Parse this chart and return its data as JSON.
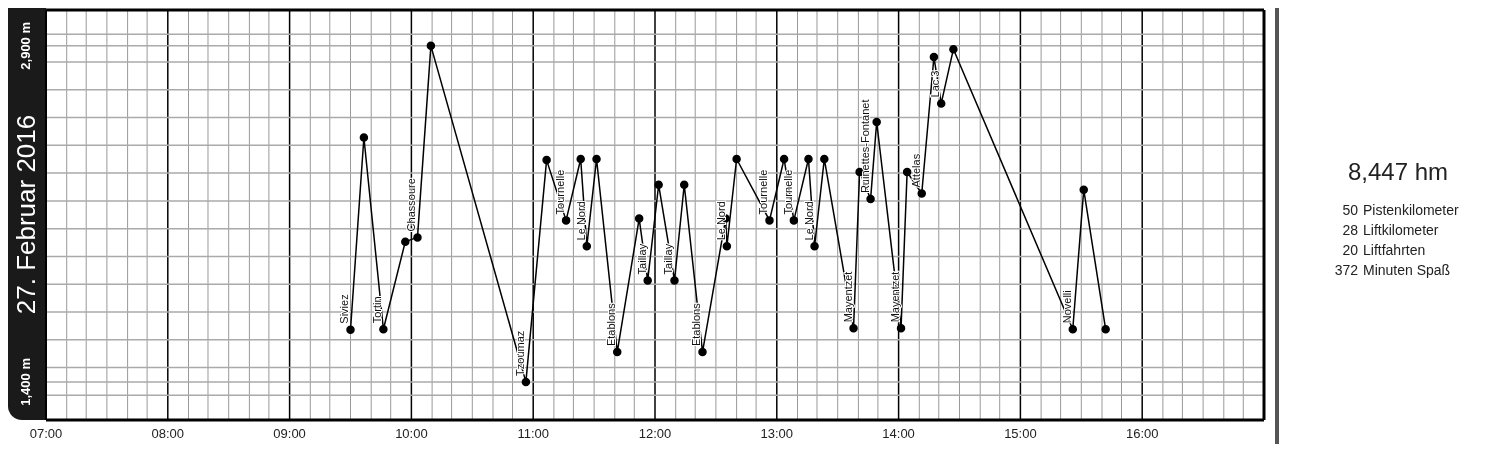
{
  "chart_data": {
    "type": "line",
    "title": "27. Februar 2016",
    "x": [
      9.5,
      9.61,
      9.77,
      9.95,
      10.05,
      10.16,
      10.94,
      11.11,
      11.27,
      11.39,
      11.44,
      11.52,
      11.69,
      11.87,
      11.94,
      12.03,
      12.16,
      12.24,
      12.39,
      12.58,
      12.59,
      12.67,
      12.94,
      13.06,
      13.14,
      13.26,
      13.31,
      13.39,
      13.63,
      13.68,
      13.77,
      13.82,
      14.02,
      14.07,
      14.19,
      14.29,
      14.35,
      14.45,
      15.43,
      15.52,
      15.7
    ],
    "series": [
      {
        "color": "#000000",
        "values": [
          1633,
          2491,
          1635,
          2026,
          2045,
          2900,
          1400,
          2390,
          2121,
          2395,
          2005,
          2395,
          1533,
          2129,
          1853,
          2280,
          1853,
          2280,
          1533,
          2129,
          2005,
          2395,
          2121,
          2395,
          2121,
          2395,
          2005,
          2395,
          1639,
          2337,
          2216,
          2560,
          1639,
          2337,
          2241,
          2850,
          2643,
          2885,
          1635,
          2258,
          1635
        ]
      }
    ],
    "xlim": [
      7,
      17
    ],
    "xticks": [
      {
        "value": 7,
        "label": "07:00"
      },
      {
        "value": 7.17,
        "label": null
      },
      {
        "value": 7.33,
        "label": null
      },
      {
        "value": 7.5,
        "label": null
      },
      {
        "value": 7.67,
        "label": null
      },
      {
        "value": 7.83,
        "label": null
      },
      {
        "value": 8,
        "label": "08:00"
      },
      {
        "value": 8.17,
        "label": null
      },
      {
        "value": 8.33,
        "label": null
      },
      {
        "value": 8.5,
        "label": null
      },
      {
        "value": 8.67,
        "label": null
      },
      {
        "value": 8.83,
        "label": null
      },
      {
        "value": 9,
        "label": "09:00"
      },
      {
        "value": 9.17,
        "label": null
      },
      {
        "value": 9.33,
        "label": null
      },
      {
        "value": 9.5,
        "label": null
      },
      {
        "value": 9.67,
        "label": null
      },
      {
        "value": 9.83,
        "label": null
      },
      {
        "value": 10,
        "label": "10:00"
      },
      {
        "value": 10.17,
        "label": null
      },
      {
        "value": 10.33,
        "label": null
      },
      {
        "value": 10.5,
        "label": null
      },
      {
        "value": 10.67,
        "label": null
      },
      {
        "value": 10.83,
        "label": null
      },
      {
        "value": 11,
        "label": "11:00"
      },
      {
        "value": 11.17,
        "label": null
      },
      {
        "value": 11.33,
        "label": null
      },
      {
        "value": 11.5,
        "label": null
      },
      {
        "value": 11.67,
        "label": null
      },
      {
        "value": 11.83,
        "label": null
      },
      {
        "value": 12,
        "label": "12:00"
      },
      {
        "value": 12.17,
        "label": null
      },
      {
        "value": 12.33,
        "label": null
      },
      {
        "value": 12.5,
        "label": null
      },
      {
        "value": 12.67,
        "label": null
      },
      {
        "value": 12.83,
        "label": null
      },
      {
        "value": 13,
        "label": "13:00"
      },
      {
        "value": 13.17,
        "label": null
      },
      {
        "value": 13.33,
        "label": null
      },
      {
        "value": 13.5,
        "label": null
      },
      {
        "value": 13.67,
        "label": null
      },
      {
        "value": 13.83,
        "label": null
      },
      {
        "value": 14,
        "label": "14:00"
      },
      {
        "value": 14.17,
        "label": null
      },
      {
        "value": 14.33,
        "label": null
      },
      {
        "value": 14.5,
        "label": null
      },
      {
        "value": 14.67,
        "label": null
      },
      {
        "value": 14.83,
        "label": null
      },
      {
        "value": 15,
        "label": "15:00"
      },
      {
        "value": 15.17,
        "label": null
      },
      {
        "value": 15.33,
        "label": null
      },
      {
        "value": 15.5,
        "label": null
      },
      {
        "value": 15.67,
        "label": null
      },
      {
        "value": 15.83,
        "label": null
      },
      {
        "value": 16,
        "label": "16:00"
      },
      {
        "value": 16.17,
        "label": null
      },
      {
        "value": 16.33,
        "label": null
      },
      {
        "value": 16.5,
        "label": null
      },
      {
        "value": 16.67,
        "label": null
      },
      {
        "value": 16.83,
        "label": null
      }
    ],
    "ylim": [
      1230,
      3060
    ],
    "yticks": [
      {
        "value": 1340,
        "label": null
      },
      {
        "value": 1400,
        "label": "1,400 m"
      },
      {
        "value": 1464,
        "label": null
      },
      {
        "value": 1588,
        "label": null
      },
      {
        "value": 1712,
        "label": null
      },
      {
        "value": 1836,
        "label": null
      },
      {
        "value": 1960,
        "label": null
      },
      {
        "value": 2084,
        "label": null
      },
      {
        "value": 2208,
        "label": null
      },
      {
        "value": 2332,
        "label": null
      },
      {
        "value": 2456,
        "label": null
      },
      {
        "value": 2580,
        "label": null
      },
      {
        "value": 2704,
        "label": null
      },
      {
        "value": 2828,
        "label": null
      },
      {
        "value": 2900,
        "label": "2,900 m"
      },
      {
        "value": 2952,
        "label": null
      }
    ],
    "grid": true,
    "marker": "circle",
    "line_style": "solid",
    "annotations": [
      {
        "text": "Siviez",
        "x": 9.5,
        "y": 1633
      },
      {
        "text": "Tortin",
        "x": 9.77,
        "y": 1635
      },
      {
        "text": "Chassoure",
        "x": 10.05,
        "y": 2045
      },
      {
        "text": "Tzoumaz",
        "x": 10.94,
        "y": 1400
      },
      {
        "text": "Tournelle",
        "x": 11.27,
        "y": 2121
      },
      {
        "text": "Le Nord",
        "x": 11.44,
        "y": 2005
      },
      {
        "text": "Etablons",
        "x": 11.69,
        "y": 1533
      },
      {
        "text": "Taillay",
        "x": 11.94,
        "y": 1853
      },
      {
        "text": "Taillay",
        "x": 12.16,
        "y": 1853
      },
      {
        "text": "Etablons",
        "x": 12.39,
        "y": 1533
      },
      {
        "text": "Le Nord",
        "x": 12.59,
        "y": 2005
      },
      {
        "text": "Tournelle",
        "x": 12.94,
        "y": 2121
      },
      {
        "text": "Tournelle",
        "x": 13.14,
        "y": 2121
      },
      {
        "text": "Le Nord",
        "x": 13.31,
        "y": 2005
      },
      {
        "text": "Mayentzet",
        "x": 13.63,
        "y": 1639
      },
      {
        "text": "Ruinettes-Fontanet",
        "x": 13.77,
        "y": 2216
      },
      {
        "text": "Mayentzet",
        "x": 14.02,
        "y": 1639
      },
      {
        "text": "Attelas",
        "x": 14.19,
        "y": 2241
      },
      {
        "text": "Lac 3",
        "x": 14.35,
        "y": 2643
      },
      {
        "text": "Novelli",
        "x": 15.43,
        "y": 1635
      },
      "8,447 hm",
      "50 Pistenkilometer",
      "28 Liftkilometer",
      "20 Liftfahrten",
      "372 Minuten Spaß"
    ]
  }
}
